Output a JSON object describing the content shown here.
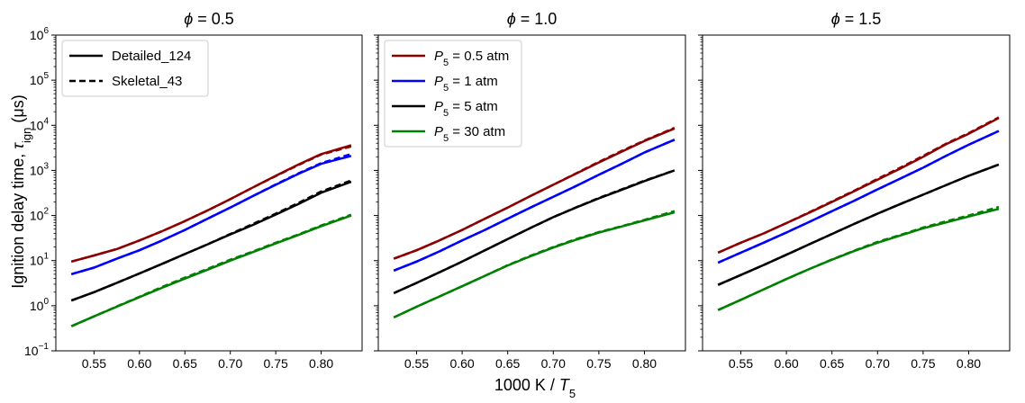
{
  "figure": {
    "xlabel_main": "1000 K / ",
    "xlabel_italic": "T",
    "xlabel_sub": "5",
    "ylabel_main": "Ignition delay time, ",
    "ylabel_symbol": "τ",
    "ylabel_sub": "ign",
    "ylabel_unit": " (μs)"
  },
  "chart_data": [
    {
      "type": "line",
      "title_symbol": "ϕ",
      "title_value": " = 0.5",
      "yscale": "log",
      "ylim": [
        0.1,
        1000000
      ],
      "xlim": [
        0.508,
        0.845
      ],
      "x_ticks": [
        "0.55",
        "0.60",
        "0.65",
        "0.70",
        "0.75",
        "0.80"
      ],
      "y_ticks": [
        {
          "base": "10",
          "exp": "−1"
        },
        {
          "base": "10",
          "exp": "0"
        },
        {
          "base": "10",
          "exp": "1"
        },
        {
          "base": "10",
          "exp": "2"
        },
        {
          "base": "10",
          "exp": "3"
        },
        {
          "base": "10",
          "exp": "4"
        },
        {
          "base": "10",
          "exp": "5"
        },
        {
          "base": "10",
          "exp": "6"
        }
      ],
      "legend": {
        "position": "top-left",
        "entries": [
          {
            "label": "Detailed_124",
            "style": "solid",
            "color": "#000000"
          },
          {
            "label": "Skeletal_43",
            "style": "dashed",
            "color": "#000000"
          }
        ]
      },
      "x": [
        0.525,
        0.55,
        0.575,
        0.6,
        0.625,
        0.65,
        0.675,
        0.7,
        0.725,
        0.75,
        0.775,
        0.8,
        0.833
      ],
      "series": [
        {
          "name": "P5 = 0.5 atm",
          "color": "#8b0000",
          "detailed": [
            9.5,
            13,
            18,
            28,
            45,
            75,
            130,
            230,
            420,
            760,
            1350,
            2300,
            3600
          ],
          "skeletal": [
            9.5,
            13,
            18,
            28,
            45,
            75,
            130,
            230,
            420,
            750,
            1320,
            2250,
            3400
          ]
        },
        {
          "name": "P5 = 1 atm",
          "color": "#0000ff",
          "detailed": [
            5,
            7,
            11,
            17,
            28,
            48,
            85,
            150,
            270,
            480,
            840,
            1400,
            2100
          ],
          "skeletal": [
            5,
            7,
            11,
            17,
            28,
            48,
            85,
            150,
            270,
            490,
            860,
            1450,
            2300
          ]
        },
        {
          "name": "P5 = 5 atm",
          "color": "#000000",
          "detailed": [
            1.3,
            2,
            3.2,
            5.2,
            8.5,
            14,
            23,
            38,
            62,
            105,
            180,
            320,
            560
          ],
          "skeletal": [
            1.3,
            2,
            3.2,
            5.2,
            8.5,
            14,
            23,
            39,
            65,
            110,
            190,
            340,
            600
          ]
        },
        {
          "name": "P5 = 30 atm",
          "color": "#008000",
          "detailed": [
            0.35,
            0.58,
            0.95,
            1.55,
            2.5,
            4,
            6.3,
            10,
            15.5,
            24,
            37,
            58,
            100
          ],
          "skeletal": [
            0.35,
            0.58,
            0.96,
            1.58,
            2.6,
            4.2,
            6.6,
            10.5,
            16,
            25,
            38,
            60,
            104
          ]
        }
      ]
    },
    {
      "type": "line",
      "title_symbol": "ϕ",
      "title_value": " = 1.0",
      "yscale": "log",
      "ylim": [
        0.1,
        1000000
      ],
      "xlim": [
        0.508,
        0.845
      ],
      "x_ticks": [
        "0.55",
        "0.60",
        "0.65",
        "0.70",
        "0.75",
        "0.80"
      ],
      "legend": {
        "position": "top-left",
        "entries": [
          {
            "label_var": "P",
            "label_sub": "5",
            "label_rest": " = 0.5 atm",
            "color": "#8b0000"
          },
          {
            "label_var": "P",
            "label_sub": "5",
            "label_rest": " = 1 atm",
            "color": "#0000ff"
          },
          {
            "label_var": "P",
            "label_sub": "5",
            "label_rest": " = 5 atm",
            "color": "#000000"
          },
          {
            "label_var": "P",
            "label_sub": "5",
            "label_rest": " = 30 atm",
            "color": "#008000"
          }
        ]
      },
      "x": [
        0.525,
        0.55,
        0.575,
        0.6,
        0.625,
        0.65,
        0.675,
        0.7,
        0.725,
        0.75,
        0.775,
        0.8,
        0.833
      ],
      "series": [
        {
          "name": "P5 = 0.5 atm",
          "color": "#8b0000",
          "detailed": [
            11,
            17,
            28,
            48,
            85,
            150,
            270,
            480,
            850,
            1500,
            2600,
            4500,
            8500
          ],
          "skeletal": [
            11,
            17,
            28,
            48,
            85,
            150,
            270,
            480,
            860,
            1550,
            2700,
            4600,
            8800
          ]
        },
        {
          "name": "P5 = 1 atm",
          "color": "#0000ff",
          "detailed": [
            6,
            9.5,
            16,
            28,
            48,
            85,
            150,
            260,
            450,
            800,
            1400,
            2500,
            4800
          ],
          "skeletal": [
            6,
            9.5,
            16,
            28,
            48,
            85,
            150,
            260,
            450,
            800,
            1400,
            2500,
            4800
          ]
        },
        {
          "name": "P5 = 5 atm",
          "color": "#000000",
          "detailed": [
            1.9,
            3.2,
            5.5,
            9.5,
            17,
            30,
            53,
            92,
            150,
            240,
            370,
            580,
            1000
          ],
          "skeletal": [
            1.9,
            3.2,
            5.5,
            9.5,
            17,
            30,
            53,
            92,
            152,
            245,
            380,
            590,
            1000
          ]
        },
        {
          "name": "P5 = 30 atm",
          "color": "#008000",
          "detailed": [
            0.55,
            0.95,
            1.6,
            2.7,
            4.6,
            7.8,
            12.5,
            19.5,
            29,
            42,
            57,
            78,
            118
          ],
          "skeletal": [
            0.55,
            0.95,
            1.6,
            2.7,
            4.6,
            7.9,
            12.8,
            20,
            30,
            43,
            58,
            80,
            125
          ]
        }
      ]
    },
    {
      "type": "line",
      "title_symbol": "ϕ",
      "title_value": " = 1.5",
      "yscale": "log",
      "ylim": [
        0.1,
        1000000
      ],
      "xlim": [
        0.508,
        0.845
      ],
      "x_ticks": [
        "0.55",
        "0.60",
        "0.65",
        "0.70",
        "0.75",
        "0.80"
      ],
      "x": [
        0.525,
        0.55,
        0.575,
        0.6,
        0.625,
        0.65,
        0.675,
        0.7,
        0.725,
        0.75,
        0.775,
        0.8,
        0.833
      ],
      "series": [
        {
          "name": "P5 = 0.5 atm",
          "color": "#8b0000",
          "detailed": [
            15,
            25,
            40,
            68,
            115,
            200,
            350,
            620,
            1100,
            2000,
            3800,
            6500,
            14500
          ],
          "skeletal": [
            15,
            25,
            40,
            68,
            118,
            205,
            360,
            650,
            1150,
            2100,
            3900,
            6700,
            15000
          ]
        },
        {
          "name": "P5 = 1 atm",
          "color": "#0000ff",
          "detailed": [
            9,
            15,
            25,
            42,
            72,
            125,
            215,
            380,
            660,
            1150,
            2100,
            3700,
            7500
          ],
          "skeletal": [
            9,
            15,
            25,
            42,
            72,
            125,
            215,
            380,
            660,
            1150,
            2100,
            3700,
            7500
          ]
        },
        {
          "name": "P5 = 5 atm",
          "color": "#000000",
          "detailed": [
            2.9,
            4.8,
            8,
            13.5,
            23,
            39,
            66,
            110,
            180,
            290,
            470,
            760,
            1350
          ],
          "skeletal": [
            2.9,
            4.8,
            8,
            13.5,
            23,
            39,
            66,
            110,
            180,
            290,
            470,
            760,
            1350
          ]
        },
        {
          "name": "P5 = 30 atm",
          "color": "#008000",
          "detailed": [
            0.8,
            1.35,
            2.3,
            3.9,
            6.5,
            10.5,
            16.5,
            25,
            36,
            52,
            70,
            95,
            140
          ],
          "skeletal": [
            0.8,
            1.35,
            2.3,
            3.9,
            6.5,
            10.6,
            16.8,
            26,
            37,
            54,
            74,
            100,
            155
          ]
        }
      ]
    }
  ]
}
